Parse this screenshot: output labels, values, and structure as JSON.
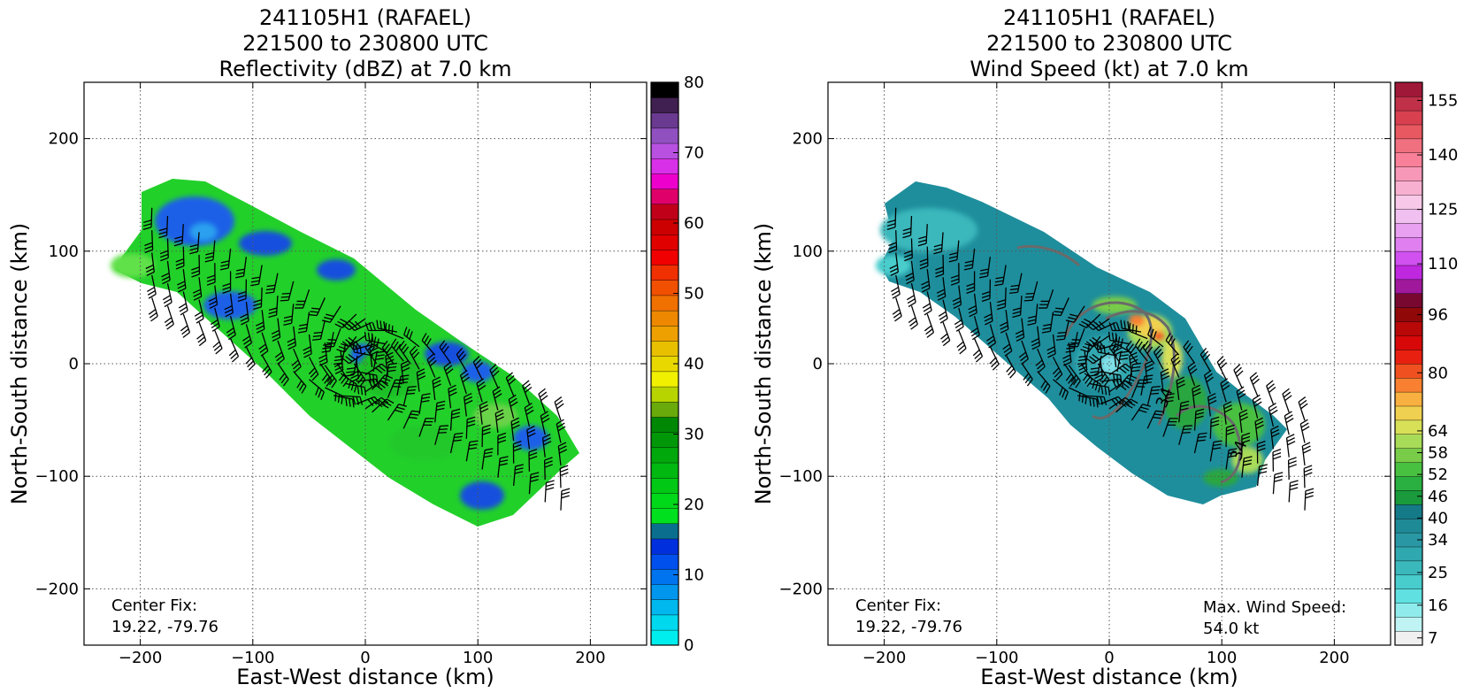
{
  "chart_data": [
    {
      "type": "heatmap",
      "title": [
        "241105H1 (RAFAEL)",
        "221500 to 230800 UTC",
        "Reflectivity (dBZ) at 7.0 km"
      ],
      "xlabel": "East-West distance (km)",
      "ylabel": "North-South distance (km)",
      "xlim": [
        -250,
        250
      ],
      "ylim": [
        -250,
        250
      ],
      "xticks": [
        -200,
        -100,
        0,
        100,
        200
      ],
      "yticks": [
        -200,
        -100,
        0,
        100,
        200
      ],
      "xtick_labels": [
        "−200",
        "−100",
        "0",
        "100",
        "200"
      ],
      "ytick_labels": [
        "−200",
        "−100",
        "0",
        "100",
        "200"
      ],
      "grid": true,
      "colorbar": {
        "min": 0,
        "max": 80,
        "tick_values": [
          0,
          10,
          20,
          30,
          40,
          50,
          60,
          70,
          80
        ],
        "tick_labels": [
          "0",
          "10",
          "20",
          "30",
          "40",
          "50",
          "60",
          "70",
          "80"
        ],
        "colors": [
          "#00eeee",
          "#00d8ee",
          "#00b8ee",
          "#0096ee",
          "#0074ee",
          "#0050ee",
          "#0030dd",
          "#0a6f8f",
          "#00e01f",
          "#00d81a",
          "#00c815",
          "#00b810",
          "#00a80c",
          "#009808",
          "#008805",
          "#6aaa0a",
          "#b8d400",
          "#f0f000",
          "#e8d800",
          "#e8c000",
          "#eea000",
          "#ee8800",
          "#f07000",
          "#f05000",
          "#f03000",
          "#f00000",
          "#e00000",
          "#cc0000",
          "#c00018",
          "#e0006a",
          "#ee00cc",
          "#d830e8",
          "#b850e0",
          "#9050c0",
          "#6a3a90",
          "#402050",
          "#000000"
        ]
      },
      "annotations": [
        {
          "text": "Center Fix:",
          "position": "bottom-left"
        },
        {
          "text": "19.22, -79.76",
          "position": "bottom-left"
        }
      ],
      "contour_labels": []
    },
    {
      "type": "heatmap",
      "title": [
        "241105H1 (RAFAEL)",
        "221500 to 230800 UTC",
        "Wind Speed (kt) at 7.0 km"
      ],
      "xlabel": "East-West distance (km)",
      "ylabel": "North-South distance (km)",
      "xlim": [
        -250,
        250
      ],
      "ylim": [
        -250,
        250
      ],
      "xticks": [
        -200,
        -100,
        0,
        100,
        200
      ],
      "yticks": [
        -200,
        -100,
        0,
        100,
        200
      ],
      "xtick_labels": [
        "−200",
        "−100",
        "0",
        "100",
        "200"
      ],
      "ytick_labels": [
        "−200",
        "−100",
        "0",
        "100",
        "200"
      ],
      "grid": true,
      "colorbar": {
        "min": 5,
        "max": 160,
        "tick_values": [
          7,
          16,
          25,
          34,
          40,
          46,
          52,
          58,
          64,
          80,
          96,
          110,
          125,
          140,
          155
        ],
        "tick_labels": [
          "7",
          "16",
          "25",
          "34",
          "40",
          "46",
          "52",
          "58",
          "64",
          "80",
          "96",
          "110",
          "125",
          "140",
          "155"
        ],
        "colors": [
          "#f0f0f0",
          "#c0f4f4",
          "#90ecec",
          "#60e0e0",
          "#48cccc",
          "#3ab8bc",
          "#30a8b0",
          "#2a98a4",
          "#1e8a96",
          "#157a88",
          "#1a9a3c",
          "#2ab040",
          "#48c040",
          "#78cc48",
          "#a8dc58",
          "#d8e058",
          "#f0d050",
          "#f8b040",
          "#f88030",
          "#f05020",
          "#e82010",
          "#d80808",
          "#b80808",
          "#900808",
          "#780830",
          "#a0189c",
          "#c028e0",
          "#d050f0",
          "#e080f0",
          "#e8a0f0",
          "#f0c0f0",
          "#f8c8e8",
          "#f8b0d0",
          "#f898b8",
          "#f88098",
          "#f07080",
          "#e85860",
          "#d84050",
          "#c03048",
          "#a01838"
        ]
      },
      "annotations": [
        {
          "text": "Center Fix:",
          "position": "bottom-left"
        },
        {
          "text": "19.22, -79.76",
          "position": "bottom-left"
        },
        {
          "text": "Max. Wind Speed:",
          "position": "bottom-right"
        },
        {
          "text": "54.0 kt",
          "position": "bottom-right"
        }
      ],
      "contour_labels": [
        "34",
        "34"
      ]
    }
  ]
}
